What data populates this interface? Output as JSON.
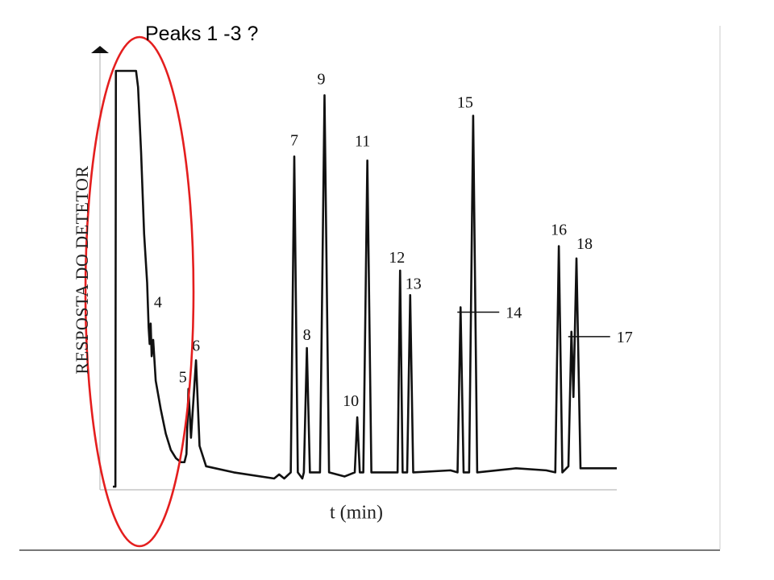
{
  "annotation": {
    "text": "Peaks 1 -3 ?",
    "shape": "ellipse",
    "color": "#e41e1e"
  },
  "chart_data": {
    "type": "line",
    "title": "",
    "xlabel": "t (min)",
    "ylabel": "RESPOSTA DO DETETOR",
    "xlim": [
      0,
      100
    ],
    "ylim": [
      0,
      100
    ],
    "x_ticks_shown": false,
    "y_ticks_shown": false,
    "grid": false,
    "line_color": "#111111",
    "peaks": [
      {
        "label": "4",
        "x": 7.5,
        "y": 38
      },
      {
        "label": "5",
        "x": 15.0,
        "y": 22
      },
      {
        "label": "6",
        "x": 16.5,
        "y": 29
      },
      {
        "label": "7",
        "x": 36.0,
        "y": 79
      },
      {
        "label": "8",
        "x": 38.5,
        "y": 32
      },
      {
        "label": "9",
        "x": 42.0,
        "y": 94
      },
      {
        "label": "10",
        "x": 48.5,
        "y": 15
      },
      {
        "label": "11",
        "x": 50.5,
        "y": 78
      },
      {
        "label": "12",
        "x": 57.0,
        "y": 51
      },
      {
        "label": "13",
        "x": 59.0,
        "y": 45
      },
      {
        "label": "14",
        "x": 69.0,
        "y": 42
      },
      {
        "label": "15",
        "x": 71.5,
        "y": 89
      },
      {
        "label": "16",
        "x": 88.5,
        "y": 57
      },
      {
        "label": "17",
        "x": 91.0,
        "y": 36
      },
      {
        "label": "18",
        "x": 92.0,
        "y": 54
      }
    ]
  }
}
